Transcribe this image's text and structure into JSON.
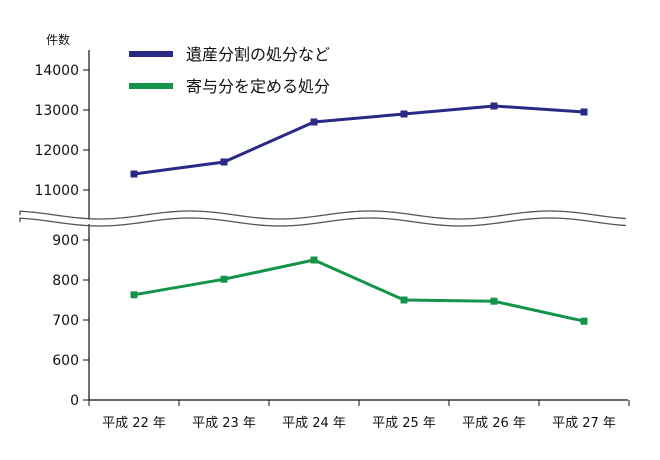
{
  "chart_data": {
    "type": "line",
    "ylabel": "件数",
    "axis_break": {
      "between": [
        900,
        11000
      ]
    },
    "categories": [
      "平成 22 年",
      "平成 23 年",
      "平成 24 年",
      "平成 25 年",
      "平成 26 年",
      "平成 27 年"
    ],
    "y_ticks_upper": [
      11000,
      12000,
      13000,
      14000
    ],
    "y_ticks_lower": [
      0,
      600,
      700,
      800,
      900
    ],
    "series": [
      {
        "name": "遺産分割の処分など",
        "color": "#2a2a86",
        "values": [
          11400,
          11700,
          12700,
          12900,
          13100,
          12950
        ]
      },
      {
        "name": "寄与分を定める処分",
        "color": "#13944a",
        "values": [
          763,
          802,
          850,
          750,
          747,
          697
        ]
      }
    ],
    "legend_position": "top-left",
    "grid": false
  }
}
